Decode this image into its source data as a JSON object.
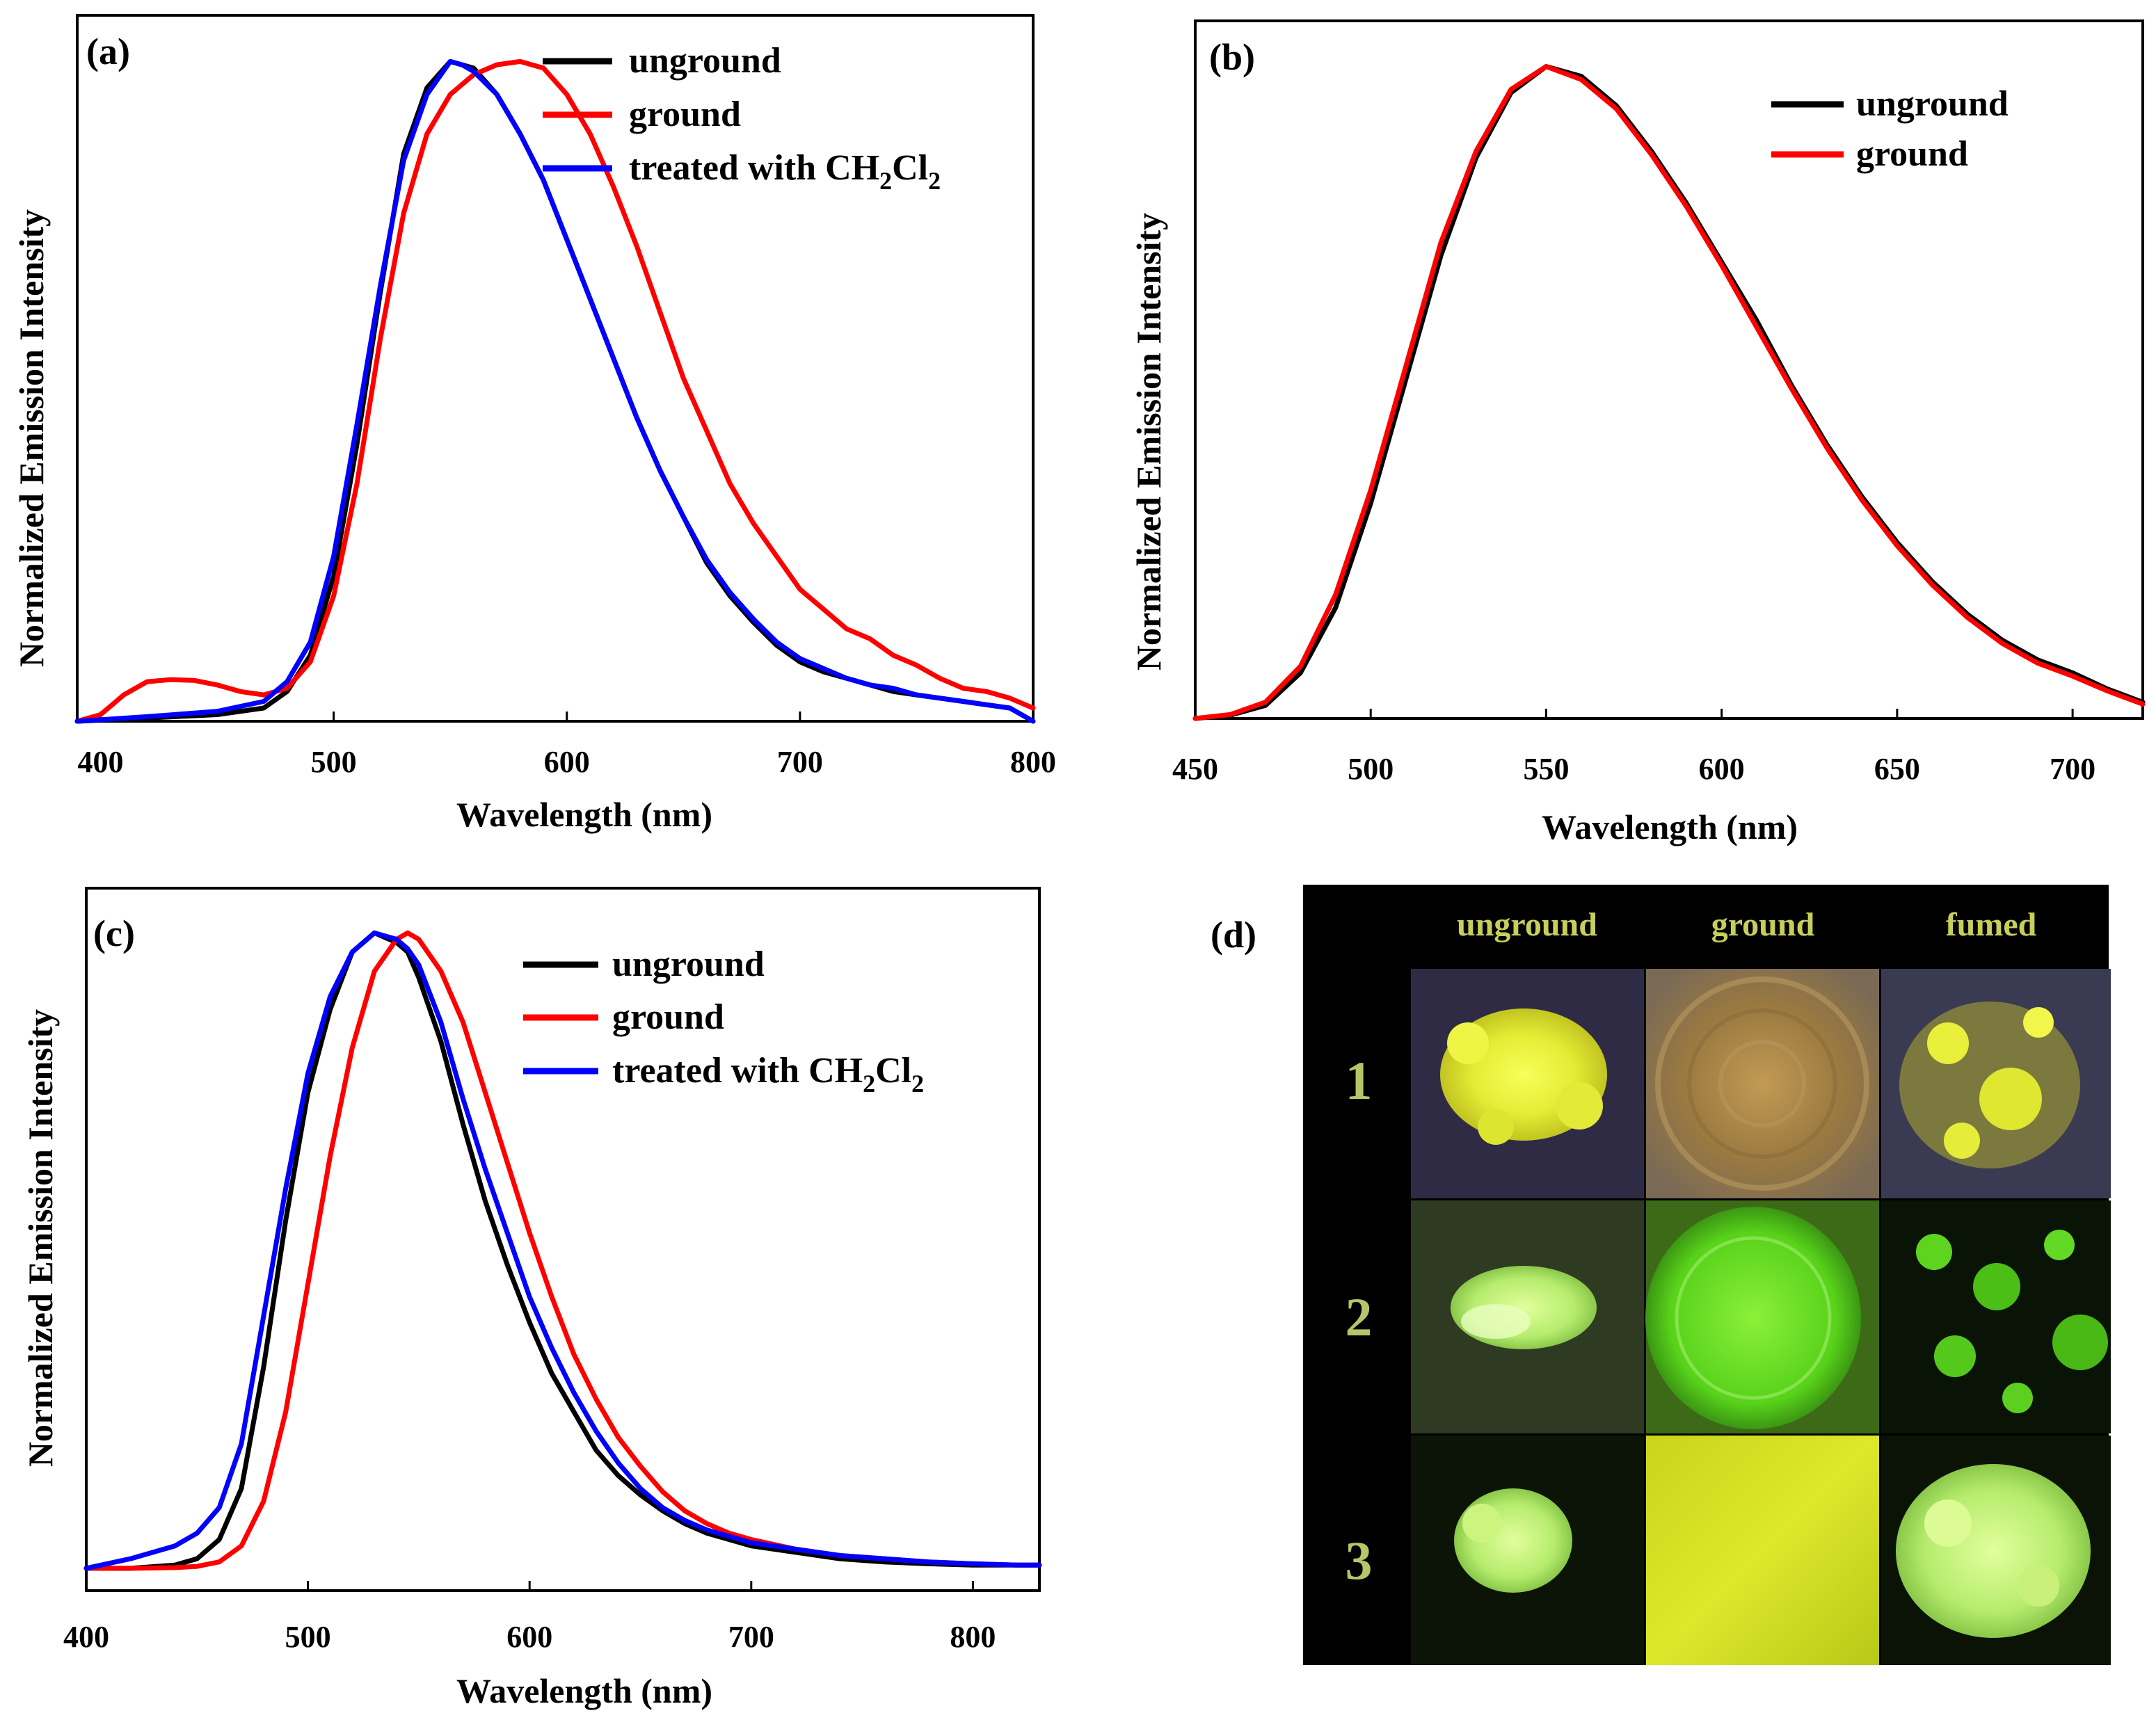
{
  "chart_data": [
    {
      "type": "line",
      "panel": "(a)",
      "xlabel": "Wavelength (nm)",
      "ylabel": "Normalized Emission Intensity",
      "xlim": [
        390,
        800
      ],
      "ylim": [
        0,
        1.07
      ],
      "xticks": [
        400,
        500,
        600,
        700,
        800
      ],
      "legend_position": "top-right",
      "series": [
        {
          "name": "unground",
          "color": "#000000",
          "x": [
            390,
            420,
            450,
            470,
            480,
            490,
            500,
            510,
            520,
            530,
            540,
            550,
            555,
            560,
            570,
            580,
            590,
            600,
            610,
            620,
            630,
            640,
            650,
            660,
            670,
            680,
            690,
            700,
            710,
            720,
            730,
            740,
            750,
            760,
            770,
            780,
            790,
            800
          ],
          "y": [
            0,
            0.005,
            0.01,
            0.02,
            0.045,
            0.1,
            0.22,
            0.42,
            0.65,
            0.86,
            0.96,
            1.0,
            0.995,
            0.99,
            0.95,
            0.89,
            0.82,
            0.73,
            0.64,
            0.55,
            0.46,
            0.38,
            0.31,
            0.24,
            0.19,
            0.15,
            0.115,
            0.09,
            0.075,
            0.065,
            0.055,
            0.045,
            0.04,
            0.035,
            0.03,
            0.025,
            0.02,
            0.0
          ]
        },
        {
          "name": "ground",
          "color": "#ff0000",
          "x": [
            390,
            400,
            410,
            420,
            430,
            440,
            450,
            460,
            470,
            480,
            490,
            500,
            510,
            520,
            530,
            540,
            550,
            560,
            570,
            580,
            590,
            600,
            610,
            620,
            630,
            640,
            650,
            660,
            670,
            680,
            690,
            700,
            710,
            720,
            730,
            740,
            750,
            760,
            770,
            780,
            790,
            800
          ],
          "y": [
            0,
            0.01,
            0.04,
            0.06,
            0.063,
            0.062,
            0.055,
            0.045,
            0.04,
            0.05,
            0.09,
            0.19,
            0.36,
            0.58,
            0.77,
            0.89,
            0.95,
            0.98,
            0.995,
            1.0,
            0.99,
            0.95,
            0.89,
            0.81,
            0.72,
            0.62,
            0.52,
            0.44,
            0.36,
            0.3,
            0.25,
            0.2,
            0.17,
            0.14,
            0.125,
            0.1,
            0.085,
            0.065,
            0.05,
            0.045,
            0.035,
            0.02
          ]
        },
        {
          "name": "treated with CH2Cl2",
          "color": "#0000ff",
          "x": [
            390,
            420,
            450,
            470,
            480,
            490,
            500,
            510,
            520,
            530,
            540,
            550,
            555,
            560,
            570,
            580,
            590,
            600,
            610,
            620,
            630,
            640,
            650,
            660,
            670,
            680,
            690,
            700,
            710,
            720,
            730,
            740,
            750,
            760,
            770,
            780,
            790,
            800
          ],
          "y": [
            0,
            0.007,
            0.015,
            0.03,
            0.06,
            0.12,
            0.25,
            0.45,
            0.66,
            0.85,
            0.95,
            1.0,
            0.995,
            0.985,
            0.95,
            0.89,
            0.82,
            0.73,
            0.64,
            0.55,
            0.46,
            0.38,
            0.31,
            0.245,
            0.195,
            0.155,
            0.12,
            0.095,
            0.08,
            0.065,
            0.055,
            0.05,
            0.04,
            0.035,
            0.03,
            0.025,
            0.02,
            0.0
          ]
        }
      ]
    },
    {
      "type": "line",
      "panel": "(b)",
      "xlabel": "Wavelength (nm)",
      "ylabel": "Normalized Emission Intensity",
      "xlim": [
        450,
        720
      ],
      "ylim": [
        0,
        1.07
      ],
      "xticks": [
        450,
        500,
        550,
        600,
        650,
        700
      ],
      "legend_position": "top-right",
      "series": [
        {
          "name": "unground",
          "color": "#000000",
          "x": [
            450,
            460,
            470,
            480,
            490,
            500,
            510,
            520,
            530,
            540,
            550,
            560,
            570,
            580,
            590,
            600,
            610,
            620,
            630,
            640,
            650,
            660,
            670,
            680,
            690,
            700,
            710,
            720
          ],
          "y": [
            0,
            0.005,
            0.02,
            0.07,
            0.17,
            0.33,
            0.52,
            0.71,
            0.86,
            0.96,
            1.0,
            0.985,
            0.94,
            0.87,
            0.79,
            0.7,
            0.61,
            0.51,
            0.42,
            0.34,
            0.27,
            0.21,
            0.16,
            0.12,
            0.09,
            0.07,
            0.045,
            0.025
          ]
        },
        {
          "name": "ground",
          "color": "#ff0000",
          "x": [
            450,
            460,
            470,
            480,
            490,
            500,
            510,
            520,
            530,
            540,
            550,
            560,
            570,
            580,
            590,
            600,
            610,
            620,
            630,
            640,
            650,
            660,
            670,
            680,
            690,
            700,
            710,
            720
          ],
          "y": [
            0,
            0.006,
            0.025,
            0.08,
            0.19,
            0.35,
            0.54,
            0.73,
            0.87,
            0.965,
            1.0,
            0.98,
            0.935,
            0.865,
            0.785,
            0.695,
            0.6,
            0.505,
            0.415,
            0.335,
            0.265,
            0.205,
            0.155,
            0.115,
            0.085,
            0.065,
            0.042,
            0.022
          ]
        }
      ]
    },
    {
      "type": "line",
      "panel": "(c)",
      "xlabel": "Wavelength (nm)",
      "ylabel": "Normalized Emission Intensity",
      "xlim": [
        400,
        830
      ],
      "ylim": [
        -0.03,
        1.07
      ],
      "xticks": [
        400,
        500,
        600,
        700,
        800
      ],
      "legend_position": "top-right",
      "series": [
        {
          "name": "unground",
          "color": "#000000",
          "x": [
            400,
            420,
            440,
            450,
            460,
            470,
            480,
            490,
            500,
            510,
            520,
            530,
            540,
            545,
            550,
            560,
            570,
            580,
            590,
            600,
            610,
            620,
            630,
            640,
            650,
            660,
            670,
            680,
            690,
            700,
            720,
            740,
            760,
            780,
            800,
            820,
            830
          ],
          "y": [
            0.005,
            0.005,
            0.01,
            0.02,
            0.05,
            0.13,
            0.32,
            0.55,
            0.75,
            0.88,
            0.97,
            1.0,
            0.985,
            0.97,
            0.93,
            0.83,
            0.7,
            0.58,
            0.48,
            0.39,
            0.31,
            0.25,
            0.19,
            0.15,
            0.12,
            0.095,
            0.075,
            0.06,
            0.05,
            0.04,
            0.03,
            0.02,
            0.015,
            0.012,
            0.01,
            0.01,
            0.01
          ]
        },
        {
          "name": "ground",
          "color": "#ff0000",
          "x": [
            400,
            420,
            440,
            450,
            460,
            470,
            480,
            490,
            500,
            510,
            520,
            530,
            540,
            545,
            550,
            560,
            570,
            580,
            590,
            600,
            610,
            620,
            630,
            640,
            650,
            660,
            670,
            680,
            690,
            700,
            720,
            740,
            760,
            780,
            800,
            820,
            830
          ],
          "y": [
            0.005,
            0.005,
            0.006,
            0.008,
            0.015,
            0.04,
            0.11,
            0.25,
            0.45,
            0.65,
            0.82,
            0.94,
            0.99,
            1.0,
            0.99,
            0.94,
            0.86,
            0.75,
            0.64,
            0.53,
            0.43,
            0.34,
            0.27,
            0.21,
            0.165,
            0.125,
            0.095,
            0.075,
            0.06,
            0.05,
            0.035,
            0.025,
            0.02,
            0.015,
            0.012,
            0.01,
            0.01
          ]
        },
        {
          "name": "treated with CH2Cl2",
          "color": "#0000ff",
          "x": [
            400,
            420,
            440,
            450,
            460,
            470,
            480,
            490,
            500,
            510,
            520,
            530,
            540,
            545,
            550,
            560,
            570,
            580,
            590,
            600,
            610,
            620,
            630,
            640,
            650,
            660,
            670,
            680,
            690,
            700,
            720,
            740,
            760,
            780,
            800,
            820,
            830
          ],
          "y": [
            0.005,
            0.02,
            0.04,
            0.06,
            0.1,
            0.2,
            0.4,
            0.6,
            0.78,
            0.9,
            0.97,
            1.0,
            0.99,
            0.975,
            0.95,
            0.86,
            0.74,
            0.63,
            0.53,
            0.43,
            0.35,
            0.28,
            0.22,
            0.17,
            0.13,
            0.1,
            0.08,
            0.065,
            0.055,
            0.045,
            0.035,
            0.025,
            0.02,
            0.015,
            0.012,
            0.01,
            0.01
          ]
        }
      ]
    }
  ],
  "photo_panel": {
    "label": "(d)",
    "columns": [
      "unground",
      "ground",
      "fumed"
    ],
    "rows": [
      "1",
      "2",
      "3"
    ]
  },
  "colors": {
    "unground": "#000000",
    "ground": "#ff0000",
    "treated": "#0000ff"
  }
}
